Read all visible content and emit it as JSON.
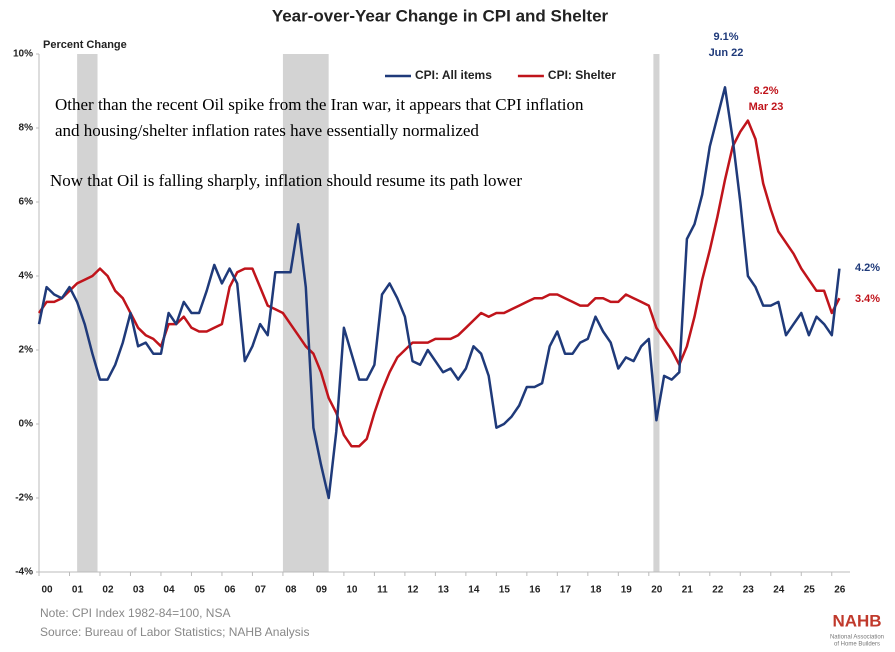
{
  "chart_data": {
    "type": "line",
    "title": "Year-over-Year Change in CPI and Shelter",
    "y_axis_label": "Percent Change",
    "x": [
      2000,
      2000.25,
      2000.5,
      2000.75,
      2001,
      2001.25,
      2001.5,
      2001.75,
      2002,
      2002.25,
      2002.5,
      2002.75,
      2003,
      2003.25,
      2003.5,
      2003.75,
      2004,
      2004.25,
      2004.5,
      2004.75,
      2005,
      2005.25,
      2005.5,
      2005.75,
      2006,
      2006.25,
      2006.5,
      2006.75,
      2007,
      2007.25,
      2007.5,
      2007.75,
      2008,
      2008.25,
      2008.5,
      2008.75,
      2009,
      2009.25,
      2009.5,
      2009.75,
      2010,
      2010.25,
      2010.5,
      2010.75,
      2011,
      2011.25,
      2011.5,
      2011.75,
      2012,
      2012.25,
      2012.5,
      2012.75,
      2013,
      2013.25,
      2013.5,
      2013.75,
      2014,
      2014.25,
      2014.5,
      2014.75,
      2015,
      2015.25,
      2015.5,
      2015.75,
      2016,
      2016.25,
      2016.5,
      2016.75,
      2017,
      2017.25,
      2017.5,
      2017.75,
      2018,
      2018.25,
      2018.5,
      2018.75,
      2019,
      2019.25,
      2019.5,
      2019.75,
      2020,
      2020.25,
      2020.5,
      2020.75,
      2021,
      2021.25,
      2021.5,
      2021.75,
      2022,
      2022.25,
      2022.5,
      2022.75,
      2023,
      2023.25,
      2023.5,
      2023.75,
      2024,
      2024.25,
      2024.5,
      2024.75,
      2025,
      2025.25,
      2025.5,
      2025.75,
      2026,
      2026.25
    ],
    "series": [
      {
        "name": "CPI: All items",
        "color": "#1f3a7a",
        "values": [
          2.7,
          3.7,
          3.5,
          3.4,
          3.7,
          3.3,
          2.7,
          1.9,
          1.2,
          1.2,
          1.6,
          2.2,
          3.0,
          2.1,
          2.2,
          1.9,
          1.9,
          3.0,
          2.7,
          3.3,
          3.0,
          3.0,
          3.6,
          4.3,
          3.8,
          4.2,
          3.8,
          1.7,
          2.1,
          2.7,
          2.4,
          4.1,
          4.1,
          4.1,
          5.4,
          3.7,
          -0.1,
          -1.1,
          -2.0,
          -0.2,
          2.6,
          1.9,
          1.2,
          1.2,
          1.6,
          3.5,
          3.8,
          3.4,
          2.9,
          1.7,
          1.6,
          2.0,
          1.7,
          1.4,
          1.5,
          1.2,
          1.5,
          2.1,
          1.9,
          1.3,
          -0.1,
          0.0,
          0.2,
          0.5,
          1.0,
          1.0,
          1.1,
          2.1,
          2.5,
          1.9,
          1.9,
          2.2,
          2.3,
          2.9,
          2.5,
          2.2,
          1.5,
          1.8,
          1.7,
          2.1,
          2.3,
          0.1,
          1.3,
          1.2,
          1.4,
          5.0,
          5.4,
          6.2,
          7.5,
          8.3,
          9.1,
          7.7,
          6.0,
          4.0,
          3.7,
          3.2,
          3.2,
          3.3,
          2.4,
          2.7,
          3.0,
          2.4,
          2.9,
          2.7,
          2.4,
          4.2
        ]
      },
      {
        "name": "CPI: Shelter",
        "color": "#c0141b",
        "values": [
          3.0,
          3.3,
          3.3,
          3.4,
          3.6,
          3.8,
          3.9,
          4.0,
          4.2,
          4.0,
          3.6,
          3.4,
          3.0,
          2.6,
          2.4,
          2.3,
          2.1,
          2.7,
          2.7,
          2.9,
          2.6,
          2.5,
          2.5,
          2.6,
          2.7,
          3.7,
          4.1,
          4.2,
          4.2,
          3.7,
          3.2,
          3.1,
          3.0,
          2.7,
          2.4,
          2.1,
          1.9,
          1.4,
          0.7,
          0.3,
          -0.3,
          -0.6,
          -0.6,
          -0.4,
          0.3,
          0.9,
          1.4,
          1.8,
          2.0,
          2.2,
          2.2,
          2.2,
          2.3,
          2.3,
          2.3,
          2.4,
          2.6,
          2.8,
          3.0,
          2.9,
          3.0,
          3.0,
          3.1,
          3.2,
          3.3,
          3.4,
          3.4,
          3.5,
          3.5,
          3.4,
          3.3,
          3.2,
          3.2,
          3.4,
          3.4,
          3.3,
          3.3,
          3.5,
          3.4,
          3.3,
          3.2,
          2.6,
          2.3,
          2.0,
          1.6,
          2.1,
          2.9,
          3.9,
          4.7,
          5.6,
          6.6,
          7.5,
          7.9,
          8.2,
          7.7,
          6.5,
          5.8,
          5.2,
          4.9,
          4.6,
          4.2,
          3.9,
          3.6,
          3.6,
          3.0,
          3.4
        ]
      }
    ],
    "shaded_periods": [
      [
        2001.25,
        2001.92
      ],
      [
        2008.0,
        2009.5
      ],
      [
        2020.15,
        2020.35
      ]
    ],
    "xlim": [
      2000,
      2026.5
    ],
    "ylim": [
      -4,
      10
    ],
    "xticks": [
      {
        "value": 2000,
        "label": "00"
      },
      {
        "value": 2001,
        "label": "01"
      },
      {
        "value": 2002,
        "label": "02"
      },
      {
        "value": 2003,
        "label": "03"
      },
      {
        "value": 2004,
        "label": "04"
      },
      {
        "value": 2005,
        "label": "05"
      },
      {
        "value": 2006,
        "label": "06"
      },
      {
        "value": 2007,
        "label": "07"
      },
      {
        "value": 2008,
        "label": "08"
      },
      {
        "value": 2009,
        "label": "09"
      },
      {
        "value": 2010,
        "label": "10"
      },
      {
        "value": 2011,
        "label": "11"
      },
      {
        "value": 2012,
        "label": "12"
      },
      {
        "value": 2013,
        "label": "13"
      },
      {
        "value": 2014,
        "label": "14"
      },
      {
        "value": 2015,
        "label": "15"
      },
      {
        "value": 2016,
        "label": "16"
      },
      {
        "value": 2017,
        "label": "17"
      },
      {
        "value": 2018,
        "label": "18"
      },
      {
        "value": 2019,
        "label": "19"
      },
      {
        "value": 2020,
        "label": "20"
      },
      {
        "value": 2021,
        "label": "21"
      },
      {
        "value": 2022,
        "label": "22"
      },
      {
        "value": 2023,
        "label": "23"
      },
      {
        "value": 2024,
        "label": "24"
      },
      {
        "value": 2025,
        "label": "25"
      },
      {
        "value": 2026,
        "label": "26"
      }
    ],
    "yticks": [
      {
        "value": -4,
        "label": "-4%"
      },
      {
        "value": -2,
        "label": "-2%"
      },
      {
        "value": 0,
        "label": "0%"
      },
      {
        "value": 2,
        "label": "2%"
      },
      {
        "value": 4,
        "label": "4%"
      },
      {
        "value": 6,
        "label": "6%"
      },
      {
        "value": 8,
        "label": "8%"
      },
      {
        "value": 10,
        "label": "10%"
      }
    ],
    "annotations": [
      "9.1%",
      "Jun 22",
      "8.2%",
      "Mar 23",
      "4.2%",
      "3.4%"
    ],
    "overlay_text": [
      "Other than the recent Oil spike from the Iran war, it appears that CPI inflation",
      "and housing/shelter inflation rates have essentially normalized",
      "Now that Oil is falling sharply, inflation should resume its path lower"
    ],
    "note": "Note: CPI Index 1982-84=100, NSA",
    "source": "Source: Bureau of Labor Statistics; NAHB Analysis",
    "logo": {
      "name": "NAHB",
      "lines": [
        "National Association",
        "of Home Builders"
      ]
    }
  }
}
